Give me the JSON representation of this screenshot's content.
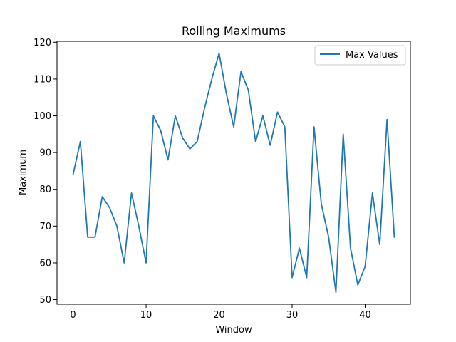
{
  "chart_data": {
    "type": "line",
    "title": "Rolling Maximums",
    "xlabel": "Window",
    "ylabel": "Maximum",
    "xlim": [
      -2.2,
      46.2
    ],
    "ylim": [
      48.75,
      120.25
    ],
    "xticks": [
      0,
      10,
      20,
      30,
      40
    ],
    "yticks": [
      50,
      60,
      70,
      80,
      90,
      100,
      110,
      120
    ],
    "grid": false,
    "legend_position": "upper right",
    "series": [
      {
        "name": "Max Values",
        "color": "#1f77b4",
        "x": [
          0,
          1,
          2,
          3,
          4,
          5,
          6,
          7,
          8,
          9,
          10,
          11,
          12,
          13,
          14,
          15,
          16,
          17,
          18,
          19,
          20,
          21,
          22,
          23,
          24,
          25,
          26,
          27,
          28,
          29,
          30,
          31,
          32,
          33,
          34,
          35,
          36,
          37,
          38,
          39,
          40,
          41,
          42,
          43,
          44
        ],
        "values": [
          84,
          93,
          67,
          67,
          78,
          75,
          70,
          60,
          79,
          70,
          60,
          100,
          96,
          88,
          100,
          94,
          91,
          93,
          102,
          110,
          117,
          106,
          97,
          112,
          107,
          93,
          100,
          92,
          101,
          97,
          56,
          64,
          56,
          97,
          76,
          67,
          52,
          95,
          64,
          54,
          59,
          79,
          65,
          99,
          67
        ]
      }
    ]
  }
}
